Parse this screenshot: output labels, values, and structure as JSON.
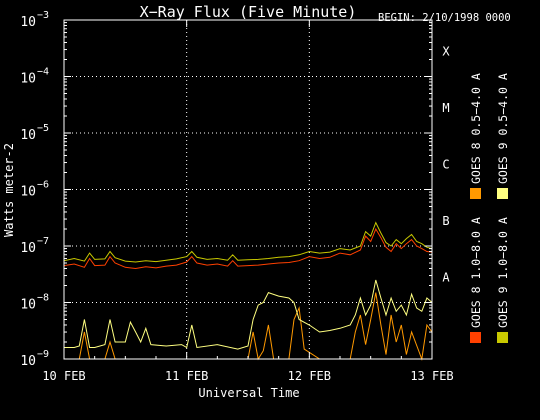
{
  "chart_data": {
    "type": "line",
    "title": "X−Ray Flux (Five Minute)",
    "begin_label": "BEGIN: 2/10/1998 0000",
    "xlabel": "Universal Time",
    "ylabel": "Watts meter-2",
    "y_scale": "log",
    "ylim": [
      1e-09,
      0.001
    ],
    "xlim": [
      "1998-02-10 00:00",
      "1998-02-13 00:00"
    ],
    "x_ticks": [
      {
        "date": "1998-02-10",
        "label": "10 FEB"
      },
      {
        "date": "1998-02-11",
        "label": "11 FEB"
      },
      {
        "date": "1998-02-12",
        "label": "12 FEB"
      },
      {
        "date": "1998-02-13",
        "label": "13 FEB"
      }
    ],
    "y_ticks": [
      {
        "value": 1e-09,
        "base": "10",
        "exp": "−9"
      },
      {
        "value": 1e-08,
        "base": "10",
        "exp": "−8"
      },
      {
        "value": 1e-07,
        "base": "10",
        "exp": "−7"
      },
      {
        "value": 1e-06,
        "base": "10",
        "exp": "−6"
      },
      {
        "value": 1e-05,
        "base": "10",
        "exp": "−5"
      },
      {
        "value": 0.0001,
        "base": "10",
        "exp": "−4"
      },
      {
        "value": 0.001,
        "base": "10",
        "exp": "−3"
      }
    ],
    "flare_classes": [
      {
        "label": "A",
        "value": 1e-08
      },
      {
        "label": "B",
        "value": 1e-07
      },
      {
        "label": "C",
        "value": 1e-06
      },
      {
        "label": "M",
        "value": 1e-05
      },
      {
        "label": "X",
        "value": 0.0001
      }
    ],
    "grid": {
      "dotted_horizontal_from": 1e-08,
      "dotted_vertical_dates": [
        "1998-02-11",
        "1998-02-12"
      ]
    },
    "series": [
      {
        "name": "GOES 8 1.0−8.0 A",
        "color": "#ff4000",
        "points": [
          [
            "1998-02-10 00:00",
            4.5e-08
          ],
          [
            "1998-02-10 02:00",
            4.8e-08
          ],
          [
            "1998-02-10 04:00",
            4.2e-08
          ],
          [
            "1998-02-10 05:00",
            6e-08
          ],
          [
            "1998-02-10 06:00",
            4.5e-08
          ],
          [
            "1998-02-10 08:00",
            4.6e-08
          ],
          [
            "1998-02-10 09:00",
            6.5e-08
          ],
          [
            "1998-02-10 10:00",
            5e-08
          ],
          [
            "1998-02-10 12:00",
            4.2e-08
          ],
          [
            "1998-02-10 14:00",
            4e-08
          ],
          [
            "1998-02-10 16:00",
            4.3e-08
          ],
          [
            "1998-02-10 18:00",
            4.1e-08
          ],
          [
            "1998-02-10 20:00",
            4.4e-08
          ],
          [
            "1998-02-10 22:00",
            4.6e-08
          ],
          [
            "1998-02-11 00:00",
            5.2e-08
          ],
          [
            "1998-02-11 01:00",
            6.5e-08
          ],
          [
            "1998-02-11 02:00",
            5e-08
          ],
          [
            "1998-02-11 04:00",
            4.6e-08
          ],
          [
            "1998-02-11 06:00",
            4.8e-08
          ],
          [
            "1998-02-11 08:00",
            4.4e-08
          ],
          [
            "1998-02-11 09:00",
            5.5e-08
          ],
          [
            "1998-02-11 10:00",
            4.4e-08
          ],
          [
            "1998-02-11 12:00",
            4.5e-08
          ],
          [
            "1998-02-11 14:00",
            4.6e-08
          ],
          [
            "1998-02-11 16:00",
            4.8e-08
          ],
          [
            "1998-02-11 18:00",
            5e-08
          ],
          [
            "1998-02-11 20:00",
            5.1e-08
          ],
          [
            "1998-02-11 22:00",
            5.5e-08
          ],
          [
            "1998-02-12 00:00",
            6.5e-08
          ],
          [
            "1998-02-12 02:00",
            6e-08
          ],
          [
            "1998-02-12 04:00",
            6.3e-08
          ],
          [
            "1998-02-12 06:00",
            7.5e-08
          ],
          [
            "1998-02-12 08:00",
            7e-08
          ],
          [
            "1998-02-12 10:00",
            8.5e-08
          ],
          [
            "1998-02-12 11:00",
            1.5e-07
          ],
          [
            "1998-02-12 12:00",
            1.2e-07
          ],
          [
            "1998-02-12 13:00",
            2e-07
          ],
          [
            "1998-02-12 14:00",
            1.4e-07
          ],
          [
            "1998-02-12 15:00",
            9.5e-08
          ],
          [
            "1998-02-12 16:00",
            8e-08
          ],
          [
            "1998-02-12 17:00",
            1.1e-07
          ],
          [
            "1998-02-12 18:00",
            9e-08
          ],
          [
            "1998-02-12 19:00",
            1.1e-07
          ],
          [
            "1998-02-12 20:00",
            1.3e-07
          ],
          [
            "1998-02-12 21:00",
            1e-07
          ],
          [
            "1998-02-12 22:00",
            9e-08
          ],
          [
            "1998-02-12 23:00",
            8e-08
          ],
          [
            "1998-02-13 00:00",
            7.8e-08
          ]
        ]
      },
      {
        "name": "GOES 8 0.5−4.0 A",
        "color": "#ff9900",
        "points": [
          [
            "1998-02-10 00:00",
            1e-09
          ],
          [
            "1998-02-10 03:00",
            1e-09
          ],
          [
            "1998-02-10 04:00",
            3e-09
          ],
          [
            "1998-02-10 05:00",
            1e-09
          ],
          [
            "1998-02-10 08:00",
            1e-09
          ],
          [
            "1998-02-10 09:00",
            2e-09
          ],
          [
            "1998-02-10 10:00",
            1e-09
          ],
          [
            "1998-02-11 00:00",
            1e-09
          ],
          [
            "1998-02-11 06:00",
            1e-09
          ],
          [
            "1998-02-11 12:00",
            1e-09
          ],
          [
            "1998-02-11 13:00",
            3e-09
          ],
          [
            "1998-02-11 14:00",
            1e-09
          ],
          [
            "1998-02-11 15:00",
            1.4e-09
          ],
          [
            "1998-02-11 16:00",
            4e-09
          ],
          [
            "1998-02-11 17:00",
            1e-09
          ],
          [
            "1998-02-11 20:00",
            1e-09
          ],
          [
            "1998-02-11 21:00",
            5e-09
          ],
          [
            "1998-02-11 22:00",
            8e-09
          ],
          [
            "1998-02-11 23:00",
            1.5e-09
          ],
          [
            "1998-02-12 02:00",
            1e-09
          ],
          [
            "1998-02-12 08:00",
            1e-09
          ],
          [
            "1998-02-12 09:00",
            3e-09
          ],
          [
            "1998-02-12 10:00",
            6e-09
          ],
          [
            "1998-02-12 11:00",
            1.8e-09
          ],
          [
            "1998-02-12 12:00",
            5e-09
          ],
          [
            "1998-02-12 13:00",
            1.5e-08
          ],
          [
            "1998-02-12 14:00",
            4e-09
          ],
          [
            "1998-02-12 15:00",
            1.2e-09
          ],
          [
            "1998-02-12 16:00",
            6e-09
          ],
          [
            "1998-02-12 17:00",
            2e-09
          ],
          [
            "1998-02-12 18:00",
            4e-09
          ],
          [
            "1998-02-12 19:00",
            1.2e-09
          ],
          [
            "1998-02-12 20:00",
            3e-09
          ],
          [
            "1998-02-12 22:00",
            1e-09
          ],
          [
            "1998-02-12 23:00",
            4e-09
          ],
          [
            "1998-02-13 00:00",
            3e-09
          ]
        ]
      },
      {
        "name": "GOES 9 1.0−8.0 A",
        "color": "#c8c800",
        "points": [
          [
            "1998-02-10 00:00",
            5.5e-08
          ],
          [
            "1998-02-10 02:00",
            6e-08
          ],
          [
            "1998-02-10 04:00",
            5.4e-08
          ],
          [
            "1998-02-10 05:00",
            7.5e-08
          ],
          [
            "1998-02-10 06:00",
            5.8e-08
          ],
          [
            "1998-02-10 08:00",
            5.9e-08
          ],
          [
            "1998-02-10 09:00",
            8e-08
          ],
          [
            "1998-02-10 10:00",
            6.2e-08
          ],
          [
            "1998-02-10 12:00",
            5.4e-08
          ],
          [
            "1998-02-10 14:00",
            5.2e-08
          ],
          [
            "1998-02-10 16:00",
            5.5e-08
          ],
          [
            "1998-02-10 18:00",
            5.3e-08
          ],
          [
            "1998-02-10 20:00",
            5.6e-08
          ],
          [
            "1998-02-10 22:00",
            5.9e-08
          ],
          [
            "1998-02-11 00:00",
            6.5e-08
          ],
          [
            "1998-02-11 01:00",
            8e-08
          ],
          [
            "1998-02-11 02:00",
            6.3e-08
          ],
          [
            "1998-02-11 04:00",
            5.8e-08
          ],
          [
            "1998-02-11 06:00",
            6e-08
          ],
          [
            "1998-02-11 08:00",
            5.6e-08
          ],
          [
            "1998-02-11 09:00",
            7e-08
          ],
          [
            "1998-02-11 10:00",
            5.6e-08
          ],
          [
            "1998-02-11 12:00",
            5.7e-08
          ],
          [
            "1998-02-11 14:00",
            5.8e-08
          ],
          [
            "1998-02-11 16:00",
            6e-08
          ],
          [
            "1998-02-11 18:00",
            6.3e-08
          ],
          [
            "1998-02-11 20:00",
            6.5e-08
          ],
          [
            "1998-02-11 22:00",
            7e-08
          ],
          [
            "1998-02-12 00:00",
            8e-08
          ],
          [
            "1998-02-12 02:00",
            7.5e-08
          ],
          [
            "1998-02-12 04:00",
            7.8e-08
          ],
          [
            "1998-02-12 06:00",
            9e-08
          ],
          [
            "1998-02-12 08:00",
            8.5e-08
          ],
          [
            "1998-02-12 10:00",
            1e-07
          ],
          [
            "1998-02-12 11:00",
            1.8e-07
          ],
          [
            "1998-02-12 12:00",
            1.5e-07
          ],
          [
            "1998-02-12 13:00",
            2.6e-07
          ],
          [
            "1998-02-12 14:00",
            1.7e-07
          ],
          [
            "1998-02-12 15:00",
            1.15e-07
          ],
          [
            "1998-02-12 16:00",
            1e-07
          ],
          [
            "1998-02-12 17:00",
            1.3e-07
          ],
          [
            "1998-02-12 18:00",
            1.1e-07
          ],
          [
            "1998-02-12 19:00",
            1.35e-07
          ],
          [
            "1998-02-12 20:00",
            1.6e-07
          ],
          [
            "1998-02-12 21:00",
            1.2e-07
          ],
          [
            "1998-02-12 22:00",
            1.1e-07
          ],
          [
            "1998-02-12 23:00",
            9.5e-08
          ],
          [
            "1998-02-13 00:00",
            9e-08
          ]
        ]
      },
      {
        "name": "GOES 9 0.5−4.0 A",
        "color": "#ffff80",
        "points": [
          [
            "1998-02-10 00:00",
            1.6e-09
          ],
          [
            "1998-02-10 02:00",
            1.6e-09
          ],
          [
            "1998-02-10 03:00",
            1.7e-09
          ],
          [
            "1998-02-10 04:00",
            5e-09
          ],
          [
            "1998-02-10 05:00",
            1.6e-09
          ],
          [
            "1998-02-10 06:00",
            1.6e-09
          ],
          [
            "1998-02-10 08:00",
            1.8e-09
          ],
          [
            "1998-02-10 09:00",
            5e-09
          ],
          [
            "1998-02-10 10:00",
            2e-09
          ],
          [
            "1998-02-10 12:00",
            2e-09
          ],
          [
            "1998-02-10 13:00",
            4.5e-09
          ],
          [
            "1998-02-10 14:00",
            3e-09
          ],
          [
            "1998-02-10 15:00",
            2e-09
          ],
          [
            "1998-02-10 16:00",
            3.5e-09
          ],
          [
            "1998-02-10 17:00",
            1.8e-09
          ],
          [
            "1998-02-10 20:00",
            1.7e-09
          ],
          [
            "1998-02-10 23:00",
            1.8e-09
          ],
          [
            "1998-02-11 00:00",
            1.6e-09
          ],
          [
            "1998-02-11 01:00",
            4e-09
          ],
          [
            "1998-02-11 02:00",
            1.6e-09
          ],
          [
            "1998-02-11 06:00",
            1.8e-09
          ],
          [
            "1998-02-11 10:00",
            1.5e-09
          ],
          [
            "1998-02-11 12:00",
            1.7e-09
          ],
          [
            "1998-02-11 13:00",
            5e-09
          ],
          [
            "1998-02-11 14:00",
            9e-09
          ],
          [
            "1998-02-11 15:00",
            1e-08
          ],
          [
            "1998-02-11 16:00",
            1.5e-08
          ],
          [
            "1998-02-11 18:00",
            1.3e-08
          ],
          [
            "1998-02-11 20:00",
            1.2e-08
          ],
          [
            "1998-02-11 21:00",
            1e-08
          ],
          [
            "1998-02-11 22:00",
            5e-09
          ],
          [
            "1998-02-12 00:00",
            4e-09
          ],
          [
            "1998-02-12 02:00",
            3e-09
          ],
          [
            "1998-02-12 04:00",
            3.2e-09
          ],
          [
            "1998-02-12 06:00",
            3.5e-09
          ],
          [
            "1998-02-12 08:00",
            4e-09
          ],
          [
            "1998-02-12 09:00",
            6e-09
          ],
          [
            "1998-02-12 10:00",
            1.2e-08
          ],
          [
            "1998-02-12 11:00",
            6e-09
          ],
          [
            "1998-02-12 12:00",
            9e-09
          ],
          [
            "1998-02-12 13:00",
            2.5e-08
          ],
          [
            "1998-02-12 14:00",
            1.2e-08
          ],
          [
            "1998-02-12 15:00",
            6e-09
          ],
          [
            "1998-02-12 16:00",
            1.2e-08
          ],
          [
            "1998-02-12 17:00",
            7e-09
          ],
          [
            "1998-02-12 18:00",
            9e-09
          ],
          [
            "1998-02-12 19:00",
            6e-09
          ],
          [
            "1998-02-12 20:00",
            1.4e-08
          ],
          [
            "1998-02-12 21:00",
            8e-09
          ],
          [
            "1998-02-12 22:00",
            7e-09
          ],
          [
            "1998-02-12 23:00",
            1.2e-08
          ],
          [
            "1998-02-13 00:00",
            1e-08
          ]
        ]
      }
    ]
  }
}
